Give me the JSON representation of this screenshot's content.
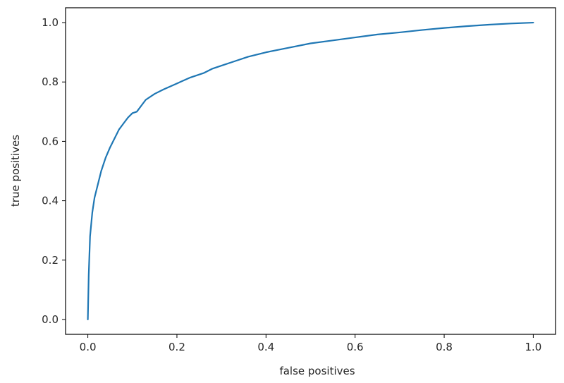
{
  "chart_data": {
    "type": "line",
    "title": "",
    "xlabel": "false positives",
    "ylabel": "true positives",
    "xlim": [
      -0.05,
      1.05
    ],
    "ylim": [
      -0.05,
      1.05
    ],
    "xticks": [
      "0.0",
      "0.2",
      "0.4",
      "0.6",
      "0.8",
      "1.0"
    ],
    "yticks": [
      "0.0",
      "0.2",
      "0.4",
      "0.6",
      "0.8",
      "1.0"
    ],
    "grid": false,
    "legend": "none",
    "series": [
      {
        "color": "#1f77b4",
        "x": [
          0.0,
          0.002,
          0.005,
          0.01,
          0.015,
          0.02,
          0.03,
          0.04,
          0.05,
          0.06,
          0.07,
          0.08,
          0.09,
          0.1,
          0.11,
          0.12,
          0.13,
          0.15,
          0.17,
          0.2,
          0.23,
          0.26,
          0.28,
          0.3,
          0.33,
          0.36,
          0.4,
          0.45,
          0.5,
          0.55,
          0.6,
          0.65,
          0.7,
          0.75,
          0.8,
          0.85,
          0.9,
          0.95,
          1.0
        ],
        "y": [
          0.0,
          0.15,
          0.28,
          0.36,
          0.41,
          0.44,
          0.5,
          0.545,
          0.58,
          0.61,
          0.64,
          0.66,
          0.68,
          0.695,
          0.7,
          0.72,
          0.74,
          0.76,
          0.775,
          0.795,
          0.815,
          0.83,
          0.845,
          0.855,
          0.87,
          0.885,
          0.9,
          0.915,
          0.93,
          0.94,
          0.95,
          0.96,
          0.967,
          0.975,
          0.982,
          0.988,
          0.993,
          0.997,
          1.0
        ]
      }
    ]
  }
}
